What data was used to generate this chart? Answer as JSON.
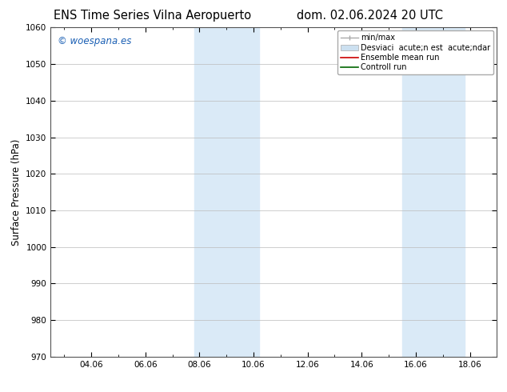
{
  "title_left": "ENS Time Series Vilna Aeropuerto",
  "title_right": "dom. 02.06.2024 20 UTC",
  "ylabel": "Surface Pressure (hPa)",
  "ylim": [
    970,
    1060
  ],
  "yticks": [
    970,
    980,
    990,
    1000,
    1010,
    1020,
    1030,
    1040,
    1050,
    1060
  ],
  "xtick_labels": [
    "04.06",
    "06.06",
    "08.06",
    "10.06",
    "12.06",
    "14.06",
    "16.06",
    "18.06"
  ],
  "xtick_positions": [
    4,
    6,
    8,
    10,
    12,
    14,
    16,
    18
  ],
  "xlim": [
    2.5,
    19.0
  ],
  "shaded_bands": [
    {
      "x_start": 7.8,
      "x_end": 10.2
    },
    {
      "x_start": 15.5,
      "x_end": 17.8
    }
  ],
  "shaded_color": "#daeaf7",
  "background_color": "#ffffff",
  "watermark_text": "© woespana.es",
  "watermark_color": "#1a5fb4",
  "legend_label_minmax": "min/max",
  "legend_label_std": "Desviaci  acute;n est  acute;ndar",
  "legend_label_ens": "Ensemble mean run",
  "legend_label_ctrl": "Controll run",
  "legend_color_minmax": "#aaaaaa",
  "legend_color_std": "#cce0f0",
  "legend_color_ens": "#cc0000",
  "legend_color_ctrl": "#006600",
  "grid_color": "#bbbbbb",
  "title_fontsize": 10.5,
  "tick_fontsize": 7.5,
  "ylabel_fontsize": 8.5,
  "legend_fontsize": 7.0,
  "watermark_fontsize": 8.5
}
